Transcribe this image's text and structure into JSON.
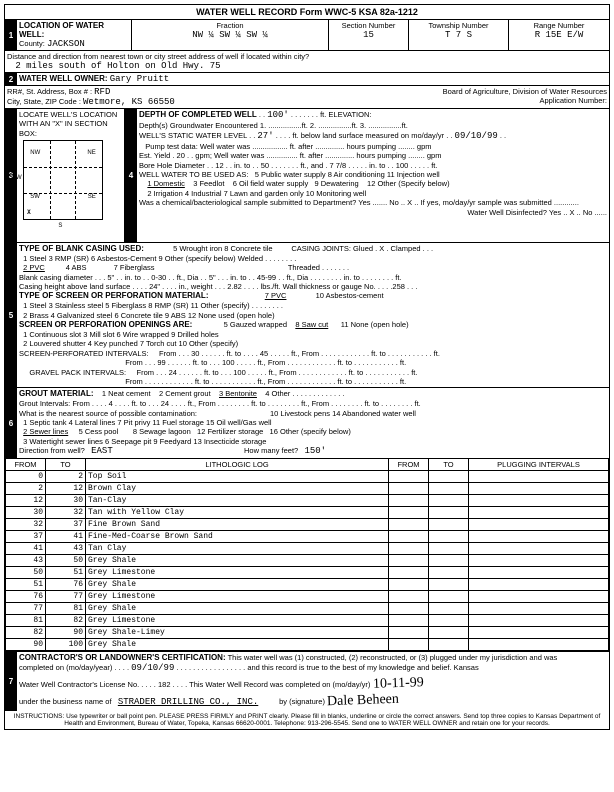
{
  "form_header": "WATER WELL RECORD    Form WWC-5    KSA 82a-1212",
  "loc": {
    "title": "LOCATION OF WATER WELL:",
    "county_lbl": "County:",
    "county": "JACKSON",
    "fraction_lbl": "Fraction",
    "fraction": "NW   ¼   SW   ¼   SW   ¼",
    "section_lbl": "Section Number",
    "section": "15",
    "township_lbl": "Township Number",
    "township": "T    7    S",
    "range_lbl": "Range Number",
    "range": "R   15E   E/W",
    "dist_lbl": "Distance and direction from nearest town or city street address of well if located within city?",
    "dist": "2 miles south of Holton on Old Hwy. 75"
  },
  "owner": {
    "title": "WATER WELL OWNER:",
    "name": "Gary Pruitt",
    "addr_lbl": "RR#, St. Address, Box # :",
    "addr": "RFD",
    "city_lbl": "City, State, ZIP Code  :",
    "city": "Wetmore, KS  66550",
    "board": "Board of Agriculture, Division of Water Resources",
    "appnum": "Application Number: "
  },
  "locate": {
    "title": "LOCATE WELL'S LOCATION WITH AN \"X\" IN SECTION BOX:",
    "mile": "1 Mile",
    "nw": "NW",
    "ne": "NE",
    "sw": "SW",
    "se": "SE",
    "w": "W",
    "s": "S",
    "x": "X"
  },
  "depth": {
    "title": "DEPTH OF COMPLETED WELL",
    "depth_val": "100'",
    "elev_lbl": "ft. ELEVATION:",
    "gw": "Depth(s) Groundwater Encountered  1. ................ft.  2. ................ft.  3. ................ft.",
    "static_lbl": "WELL'S STATIC WATER LEVEL",
    "static": "27'",
    "static_after": "ft. below land surface measured on mo/day/yr",
    "static_date": "09/10/99",
    "pump_lbl": "Pump test data:  Well water was ................. ft. after .............. hours pumping ........ gpm",
    "yield": "Est. Yield . 20 . . gpm;  Well water was ............... ft. after .............. hours pumping ........ gpm",
    "bore": "Bore Hole Diameter . . 12 . . in. to . . 50 . . . . . . . ft., and . 7 7/8 . . . . . in. to . . 100 . . . . . ft.",
    "use_lbl": "WELL WATER TO BE USED AS:",
    "use_row1": "5 Public water supply     8 Air conditioning     11 Injection well",
    "use_row2": "1 Domestic     3 Feedlot     6 Oil field water supply     9 Dewatering     12 Other (Specify below)",
    "use_row3": "2 Irrigation     4 Industrial     7 Lawn and garden only  10 Monitoring well",
    "use_1u": "1 Domestic",
    "chem": "Was a chemical/bacteriological sample submitted to Department? Yes ....... No .. X .. If yes, mo/day/yr sample was submitted ............",
    "disinfect": "Water Well Disinfected?  Yes .. X .. No ......"
  },
  "casing": {
    "title": "TYPE OF BLANK CASING USED:",
    "row1": "5 Wrought iron        8 Concrete tile",
    "joints": "CASING JOINTS: Glued . X . Clamped . . .",
    "r1": "1 Steel          3 RMP (SR)          6 Asbestos-Cement     9 Other (specify below)          Welded . . . . . . . .",
    "r2": "2 PVC            4 ABS               7 Fiberglass                                                                      Threaded . . . . . . .",
    "bcd": "Blank casing diameter . . . 5\" . . in. to . . 0-30 . . ft., Dia . . 5\" . . . in. to . . 45-99 . . ft., Dia . . . . . . . . in. to . . . . . . . . ft.",
    "cht": "Casing height above land surface . . . . 24\" . . . . in., weight . . . 2.82 . . . . lbs./ft. Wall thickness or gauge No. . . . .258 . . .",
    "screen_title": "TYPE OF SCREEN OR PERFORATION MATERIAL:",
    "screen_r1": "1 Steel        3 Stainless steel      5 Fiberglass       8 RMP (SR)       11 Other (specify) . . . . . . . .",
    "screen_7": "7 PVC",
    "screen_10": "10 Asbestos-cement",
    "screen_r2": "2 Brass        4 Galvanized steel    6 Concrete tile    9 ABS              12 None used (open hole)",
    "open_title": "SCREEN OR PERFORATION OPENINGS ARE:",
    "open_r1": "5 Gauzed wrapped     8 Saw cut        11 None (open hole)",
    "open_8u": "8 Saw cut",
    "open_r2": "1 Continuous slot     3 Mill slot        6 Wire wrapped        9 Drilled holes",
    "open_r3": "2 Louvered shutter    4 Key punched    7 Torch cut            10 Other (specify)",
    "spi_lbl": "SCREEN-PERFORATED INTERVALS:",
    "spi_1": "From . . . 30 . . . . . . ft. to . . . . 45 . . . . . ft., From . . . . . . . . . . . . ft. to . . . . . . . . . . . ft.",
    "spi_2": "From . . . 99 . . . . . . ft. to . . . 100 . . . . . ft., From . . . . . . . . . . . . ft. to . . . . . . . . . . . ft.",
    "gpi_lbl": "GRAVEL PACK INTERVALS:",
    "gpi_1": "From . . . 24 . . . . . . ft. to . . . 100 . . . . . ft., From . . . . . . . . . . . . ft. to . . . . . . . . . . . ft.",
    "gpi_2": "From . . . . . . . . . . . . ft. to . . . . . . . . . . . ft., From . . . . . . . . . . . . ft. to . . . . . . . . . . . ft."
  },
  "grout": {
    "title": "GROUT MATERIAL:",
    "opts": "1 Neat cement     2 Cement grout     3 Bentonite     4 Other . . . . . . . . . . . . . . . .",
    "opt3u": "3 Bentonite",
    "intervals": "Grout Intervals:   From . . . . 4 . . . . ft. to . . . 24 . . . . ft., From . . . . . . . . ft. to . . . . . . . . ft., From . . . . . . . . ft. to . . . . . . . . ft.",
    "contam_lbl": "What is the nearest source of possible contamination:",
    "c_row1": "10 Livestock pens       14 Abandoned water well",
    "c_row2": "1 Septic tank         4 Lateral lines      7 Pit privy          11 Fuel storage          15 Oil well/Gas well",
    "c_row3": "2 Sewer lines        5 Cess pool         8 Sewage lagoon   12 Fertilizer storage    16 Other (specify below)",
    "c_2u": "2 Sewer lines",
    "c_row4": "3 Watertight sewer lines  6 Seepage pit    9 Feedyard        13 Insecticide storage",
    "dir_lbl": "Direction from well?",
    "dir": "EAST",
    "feet_lbl": "How many feet?",
    "feet": "150'"
  },
  "log": {
    "header_from": "FROM",
    "header_to": "TO",
    "header_lith": "LITHOLOGIC LOG",
    "header_pfrom": "FROM",
    "header_pto": "TO",
    "header_plug": "PLUGGING INTERVALS",
    "rows": [
      [
        "0",
        "2",
        "Top Soil"
      ],
      [
        "2",
        "12",
        "Brown Clay"
      ],
      [
        "12",
        "30",
        "Tan-Clay"
      ],
      [
        "30",
        "32",
        "Tan with Yellow Clay"
      ],
      [
        "32",
        "37",
        "Fine Brown Sand"
      ],
      [
        "37",
        "41",
        "Fine-Med-Coarse Brown Sand"
      ],
      [
        "41",
        "43",
        "Tan Clay"
      ],
      [
        "43",
        "50",
        "Grey Shale"
      ],
      [
        "50",
        "51",
        "Grey Limestone"
      ],
      [
        "51",
        "76",
        "Grey Shale"
      ],
      [
        "76",
        "77",
        "Grey Limestone"
      ],
      [
        "77",
        "81",
        "Grey Shale"
      ],
      [
        "81",
        "82",
        "Grey Limestone"
      ],
      [
        "82",
        "90",
        "Grey Shale-Limey"
      ],
      [
        "90",
        "100",
        "Grey Shale"
      ]
    ]
  },
  "cert": {
    "title": "CONTRACTOR'S OR LANDOWNER'S CERTIFICATION:",
    "text1": "This water well was (1) constructed, (2) reconstructed, or (3) plugged under my jurisdiction and was",
    "text2_a": "completed on (mo/day/year)",
    "date": "09/10/99",
    "text2_b": "and this record is true to the best of my knowledge and belief. Kansas",
    "lic": "Water Well Contractor's License No. . . . . 182 . . . . This Water Well Record was completed on (mo/day/yr)",
    "compdate": "10-11-99",
    "bus_lbl": "under the business name of",
    "bus": "STRADER DRILLING CO., INC.",
    "sig_lbl": "by (signature)",
    "sig": "Dale Beheen"
  },
  "instr": "INSTRUCTIONS: Use typewriter or ball point pen. PLEASE PRESS FIRMLY and PRINT clearly. Please fill in blanks, underline or circle the correct answers. Send top three copies to Kansas Department of Health and Environment, Bureau of Water, Topeka, Kansas 66620-0001. Telephone: 913-296-5545. Send one to WATER WELL OWNER and retain one for your records."
}
